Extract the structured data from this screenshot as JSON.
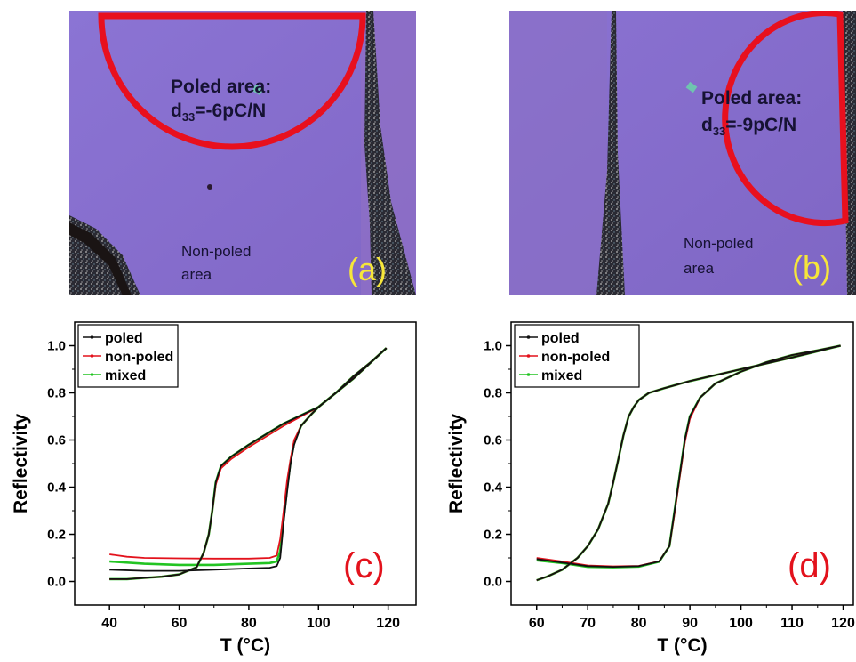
{
  "figure": {
    "photos": [
      {
        "id": "a",
        "panel_label": "(a)",
        "poled_line1": "Poled area:",
        "poled_line2_prefix": "d",
        "poled_line2_sub": "33",
        "poled_line2_suffix": "=-6pC/N",
        "nonpoled_line1": "Non-poled",
        "nonpoled_line2": "area"
      },
      {
        "id": "b",
        "panel_label": "(b)",
        "poled_line1": "Poled area:",
        "poled_line2_prefix": "d",
        "poled_line2_sub": "33",
        "poled_line2_suffix": "=-9pC/N",
        "nonpoled_line1": "Non-poled",
        "nonpoled_line2": "area"
      }
    ],
    "colors": {
      "substrate": "#8a72d0",
      "outline": "#e8101e",
      "panel_label": "#f6e63a",
      "poled": "#111111",
      "non_poled": "#e3121c",
      "mixed": "#22c422"
    }
  },
  "chart_data": [
    {
      "id": "c",
      "type": "line",
      "panel_label": "(c)",
      "xlabel": "T (°C)",
      "ylabel": "Reflectivity",
      "xlim": [
        30,
        128
      ],
      "ylim": [
        -0.1,
        1.1
      ],
      "xticks": [
        40,
        60,
        80,
        100,
        120
      ],
      "yticks": [
        0.0,
        0.2,
        0.4,
        0.6,
        0.8,
        1.0
      ],
      "ytick_labels": [
        "0.0",
        "0.2",
        "0.4",
        "0.6",
        "0.8",
        "1.0"
      ],
      "legend": "top-left",
      "series": [
        {
          "name": "poled",
          "branches": [
            {
              "x": [
                40,
                50,
                60,
                70,
                80,
                86,
                88,
                89,
                90,
                91,
                92,
                93,
                95,
                98,
                100,
                105,
                110,
                115,
                119.5
              ],
              "y": [
                0.05,
                0.045,
                0.045,
                0.05,
                0.055,
                0.058,
                0.065,
                0.1,
                0.25,
                0.38,
                0.5,
                0.58,
                0.66,
                0.71,
                0.74,
                0.8,
                0.87,
                0.93,
                0.99
              ]
            },
            {
              "x": [
                119.5,
                110,
                100,
                90,
                80,
                75,
                72,
                70.5,
                69.5,
                68.5,
                67,
                65,
                60,
                55,
                50,
                45,
                40
              ],
              "y": [
                0.99,
                0.86,
                0.74,
                0.67,
                0.58,
                0.53,
                0.49,
                0.42,
                0.3,
                0.2,
                0.12,
                0.06,
                0.03,
                0.02,
                0.015,
                0.01,
                0.01
              ]
            }
          ]
        },
        {
          "name": "non-poled",
          "branches": [
            {
              "x": [
                40,
                45,
                50,
                60,
                70,
                80,
                86,
                88,
                89,
                90,
                91,
                92,
                93,
                95,
                98,
                100,
                105,
                110,
                115,
                119.5
              ],
              "y": [
                0.115,
                0.105,
                0.1,
                0.098,
                0.097,
                0.097,
                0.1,
                0.11,
                0.18,
                0.3,
                0.43,
                0.52,
                0.6,
                0.66,
                0.71,
                0.74,
                0.8,
                0.87,
                0.93,
                0.99
              ]
            },
            {
              "x": [
                119.5,
                110,
                100,
                90,
                80,
                75,
                72,
                70.5,
                69.5,
                68.5,
                67,
                65,
                60,
                55,
                50,
                45,
                40
              ],
              "y": [
                0.99,
                0.86,
                0.74,
                0.66,
                0.57,
                0.52,
                0.48,
                0.41,
                0.3,
                0.2,
                0.12,
                0.06,
                0.03,
                0.02,
                0.015,
                0.01,
                0.01
              ]
            }
          ]
        },
        {
          "name": "mixed",
          "branches": [
            {
              "x": [
                40,
                50,
                60,
                70,
                80,
                86,
                88,
                89,
                90,
                91,
                92,
                93,
                95,
                98,
                100,
                105,
                110,
                115,
                119.5
              ],
              "y": [
                0.085,
                0.075,
                0.07,
                0.07,
                0.075,
                0.078,
                0.085,
                0.13,
                0.27,
                0.4,
                0.51,
                0.59,
                0.66,
                0.71,
                0.74,
                0.8,
                0.87,
                0.93,
                0.99
              ]
            },
            {
              "x": [
                119.5,
                110,
                100,
                90,
                80,
                75,
                72,
                70.5,
                69.5,
                68.5,
                67,
                65,
                60,
                55,
                50,
                45,
                40
              ],
              "y": [
                0.99,
                0.86,
                0.74,
                0.67,
                0.58,
                0.53,
                0.49,
                0.42,
                0.3,
                0.2,
                0.12,
                0.06,
                0.03,
                0.02,
                0.015,
                0.01,
                0.01
              ]
            }
          ]
        }
      ]
    },
    {
      "id": "d",
      "type": "line",
      "panel_label": "(d)",
      "xlabel": "T (°C)",
      "ylabel": "Reflectivity",
      "xlim": [
        55,
        122
      ],
      "ylim": [
        -0.1,
        1.1
      ],
      "xticks": [
        60,
        70,
        80,
        90,
        100,
        110,
        120
      ],
      "yticks": [
        0.0,
        0.2,
        0.4,
        0.6,
        0.8,
        1.0
      ],
      "ytick_labels": [
        "0.0",
        "0.2",
        "0.4",
        "0.6",
        "0.8",
        "1.0"
      ],
      "legend": "top-left",
      "series": [
        {
          "name": "poled",
          "branches": [
            {
              "x": [
                60,
                65,
                70,
                75,
                80,
                84,
                86,
                87,
                88,
                89,
                90,
                92,
                95,
                100,
                105,
                110,
                115,
                119.5
              ],
              "y": [
                0.095,
                0.08,
                0.065,
                0.062,
                0.065,
                0.085,
                0.15,
                0.3,
                0.45,
                0.6,
                0.7,
                0.78,
                0.84,
                0.89,
                0.93,
                0.96,
                0.98,
                1.0
              ]
            },
            {
              "x": [
                119.5,
                110,
                100,
                90,
                85,
                82,
                80,
                79,
                78,
                77,
                76,
                75,
                74,
                72,
                70,
                68,
                65,
                62,
                60
              ],
              "y": [
                1.0,
                0.95,
                0.9,
                0.85,
                0.82,
                0.8,
                0.77,
                0.74,
                0.7,
                0.62,
                0.52,
                0.42,
                0.33,
                0.22,
                0.15,
                0.1,
                0.05,
                0.02,
                0.005
              ]
            }
          ]
        },
        {
          "name": "non-poled",
          "branches": [
            {
              "x": [
                60,
                65,
                70,
                75,
                80,
                84,
                86,
                87,
                88,
                89,
                90,
                92,
                95,
                100,
                105,
                110,
                115,
                119.5
              ],
              "y": [
                0.1,
                0.085,
                0.068,
                0.064,
                0.066,
                0.086,
                0.15,
                0.29,
                0.44,
                0.59,
                0.69,
                0.78,
                0.84,
                0.89,
                0.93,
                0.96,
                0.98,
                1.0
              ]
            },
            {
              "x": [
                119.5,
                110,
                100,
                90,
                85,
                82,
                80,
                79,
                78,
                77,
                76,
                75,
                74,
                72,
                70,
                68,
                65,
                62,
                60
              ],
              "y": [
                1.0,
                0.95,
                0.9,
                0.85,
                0.82,
                0.8,
                0.77,
                0.74,
                0.7,
                0.62,
                0.52,
                0.42,
                0.33,
                0.22,
                0.15,
                0.1,
                0.05,
                0.02,
                0.005
              ]
            }
          ]
        },
        {
          "name": "mixed",
          "branches": [
            {
              "x": [
                60,
                65,
                70,
                75,
                80,
                84,
                86,
                87,
                88,
                89,
                90,
                92,
                95,
                100,
                105,
                110,
                115,
                119.5
              ],
              "y": [
                0.09,
                0.078,
                0.062,
                0.06,
                0.063,
                0.084,
                0.15,
                0.3,
                0.45,
                0.6,
                0.7,
                0.78,
                0.84,
                0.89,
                0.93,
                0.96,
                0.98,
                1.0
              ]
            },
            {
              "x": [
                119.5,
                110,
                100,
                90,
                85,
                82,
                80,
                79,
                78,
                77,
                76,
                75,
                74,
                72,
                70,
                68,
                65,
                62,
                60
              ],
              "y": [
                1.0,
                0.95,
                0.9,
                0.85,
                0.82,
                0.8,
                0.77,
                0.74,
                0.7,
                0.62,
                0.52,
                0.42,
                0.33,
                0.22,
                0.15,
                0.1,
                0.05,
                0.02,
                0.005
              ]
            }
          ]
        }
      ]
    }
  ]
}
